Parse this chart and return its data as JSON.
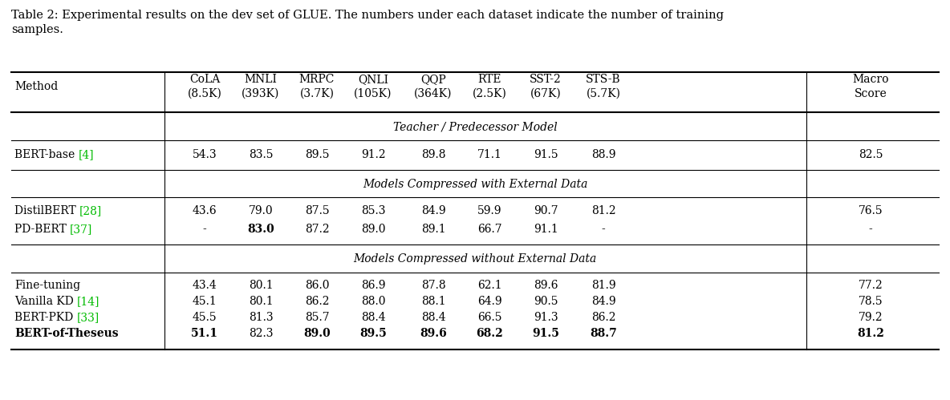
{
  "caption_line1": "Table 2: Experimental results on the dev set of GLUE. The numbers under each dataset indicate the number of training",
  "caption_line2": "samples.",
  "col_headers_line1": [
    "Method",
    "CoLA",
    "MNLI",
    "MRPC",
    "QNLI",
    "QQP",
    "RTE",
    "SST-2",
    "STS-B",
    "Macro"
  ],
  "col_headers_line2": [
    "",
    "(8.5K)",
    "(393K)",
    "(3.7K)",
    "(105K)",
    "(364K)",
    "(2.5K)",
    "(67K)",
    "(5.7K)",
    "Score"
  ],
  "section_teacher": "Teacher / Predecessor Model",
  "section_external": "Models Compressed with External Data",
  "section_noexternal": "Models Compressed without External Data",
  "rows_teacher": [
    {
      "method": "BERT-base [4]",
      "method_bold": false,
      "values": [
        "54.3",
        "83.5",
        "89.5",
        "91.2",
        "89.8",
        "71.1",
        "91.5",
        "88.9",
        "82.5"
      ],
      "bold": []
    }
  ],
  "rows_external": [
    {
      "method": "DistilBERT [28]",
      "method_bold": false,
      "values": [
        "43.6",
        "79.0",
        "87.5",
        "85.3",
        "84.9",
        "59.9",
        "90.7",
        "81.2",
        "76.5"
      ],
      "bold": []
    },
    {
      "method": "PD-BERT [37]",
      "method_bold": false,
      "values": [
        "-",
        "83.0",
        "87.2",
        "89.0",
        "89.1",
        "66.7",
        "91.1",
        "-",
        "-"
      ],
      "bold": [
        1
      ]
    }
  ],
  "rows_noexternal": [
    {
      "method": "Fine-tuning",
      "method_bold": false,
      "values": [
        "43.4",
        "80.1",
        "86.0",
        "86.9",
        "87.8",
        "62.1",
        "89.6",
        "81.9",
        "77.2"
      ],
      "bold": []
    },
    {
      "method": "Vanilla KD [14]",
      "method_bold": false,
      "values": [
        "45.1",
        "80.1",
        "86.2",
        "88.0",
        "88.1",
        "64.9",
        "90.5",
        "84.9",
        "78.5"
      ],
      "bold": []
    },
    {
      "method": "BERT-PKD [33]",
      "method_bold": false,
      "values": [
        "45.5",
        "81.3",
        "85.7",
        "88.4",
        "88.4",
        "66.5",
        "91.3",
        "86.2",
        "79.2"
      ],
      "bold": []
    },
    {
      "method": "BERT-of-Theseus",
      "method_bold": true,
      "values": [
        "51.1",
        "82.3",
        "89.0",
        "89.5",
        "89.6",
        "68.2",
        "91.5",
        "88.7",
        "81.2"
      ],
      "bold": [
        0,
        2,
        3,
        4,
        5,
        6,
        7,
        8
      ]
    }
  ],
  "bg_color": "#ffffff",
  "text_color": "#000000",
  "ref_color": "#00bb00",
  "figsize": [
    11.84,
    4.99
  ],
  "dpi": 100
}
